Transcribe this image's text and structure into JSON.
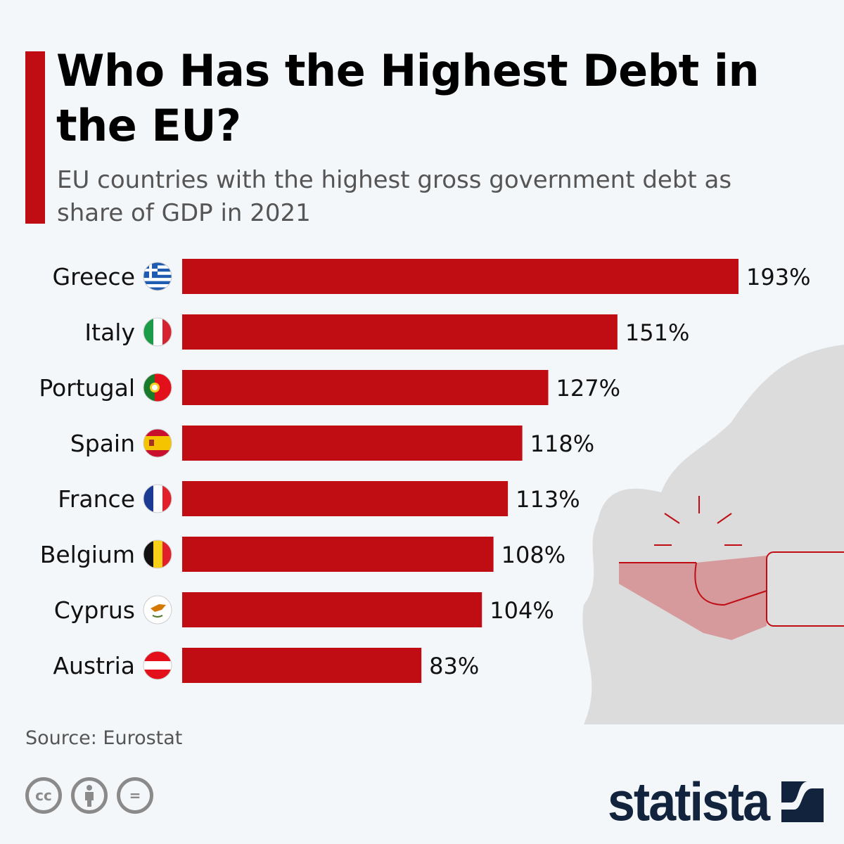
{
  "header": {
    "title": "Who Has the Highest Debt in the EU?",
    "subtitle": "EU countries with the highest gross government debt as share of GDP in 2021"
  },
  "chart_data": {
    "type": "bar",
    "orientation": "horizontal",
    "categories": [
      "Greece",
      "Italy",
      "Portugal",
      "Spain",
      "France",
      "Belgium",
      "Cyprus",
      "Austria"
    ],
    "values": [
      193,
      151,
      127,
      118,
      113,
      108,
      104,
      83
    ],
    "value_labels": [
      "193%",
      "151%",
      "127%",
      "118%",
      "113%",
      "108%",
      "104%",
      "83%"
    ],
    "flags": [
      "greece-flag",
      "italy-flag",
      "portugal-flag",
      "spain-flag",
      "france-flag",
      "belgium-flag",
      "cyprus-flag",
      "austria-flag"
    ],
    "unit": "%",
    "xlim": [
      0,
      193
    ],
    "grid": false,
    "bar_color": "#c00d13"
  },
  "footer": {
    "source": "Source: Eurostat",
    "license_icons": [
      "cc-icon",
      "attribution-icon",
      "no-derivatives-icon"
    ],
    "cc_label": "cc",
    "nd_label": "=",
    "logo": "statista",
    "logo_color": "#12243d"
  }
}
